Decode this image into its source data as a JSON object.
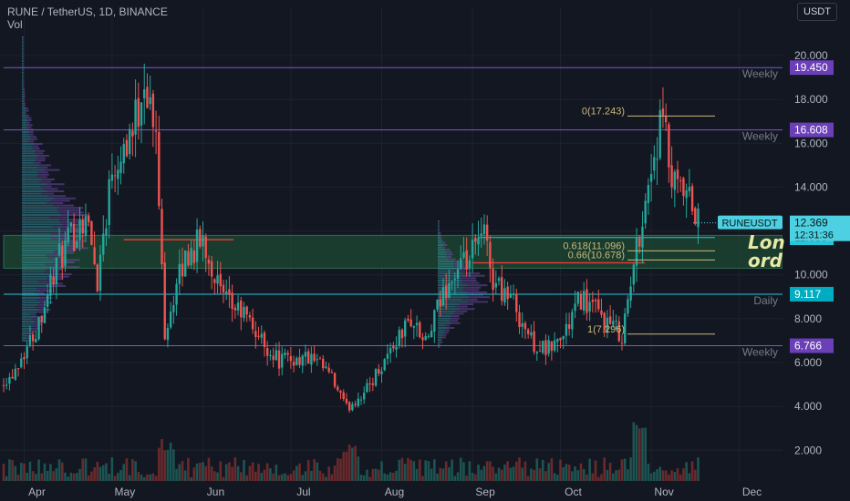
{
  "header": {
    "symbol_line": "RUNE / TetherUS, 1D, BINANCE",
    "volume_label": "Vol",
    "currency": "USDT"
  },
  "annotations": {
    "long_line1": "Lon",
    "long_line2": "ord",
    "symbol_tag": "RUNEUSDT",
    "countdown": "12:31:36"
  },
  "colors": {
    "background": "#131722",
    "up": "#26a69a",
    "down": "#ef5350",
    "weekly_line": "#7e57c2",
    "daily_line": "#26c6da",
    "fib": "#c9b87a",
    "zone": "#1e5a3a",
    "red_line": "#e53935",
    "last_price": "#4dd0e1"
  },
  "chart_data": {
    "type": "candlestick",
    "title": "RUNE / TetherUS, 1D, BINANCE",
    "x_ticks": [
      "Apr",
      "May",
      "Jun",
      "Jul",
      "Aug",
      "Sep",
      "Oct",
      "Nov",
      "Dec"
    ],
    "y_ticks": [
      "2.000",
      "4.000",
      "6.000",
      "8.000",
      "10.000",
      "12.000",
      "14.000",
      "16.000",
      "18.000",
      "20.000"
    ],
    "y_range": [
      0.6,
      22.2
    ],
    "price_levels": [
      {
        "label": "Weekly",
        "value": 19.45,
        "value_text": "19.450",
        "kind": "weekly"
      },
      {
        "label": "Weekly",
        "value": 16.608,
        "value_text": "16.608",
        "kind": "weekly"
      },
      {
        "label": "Daily",
        "value": 9.117,
        "value_text": "9.117",
        "kind": "daily"
      },
      {
        "label": "Weekly",
        "value": 6.766,
        "value_text": "6.766",
        "kind": "weekly"
      }
    ],
    "zone": [
      10.3,
      11.8
    ],
    "zone_label_value": "11.688",
    "last_price": {
      "value": 12.369,
      "value_text": "12.369",
      "countdown": "12:31:36"
    },
    "fib_levels": [
      {
        "label": "0(17.243)",
        "value": 17.243
      },
      {
        "label": "0.618(11.096)",
        "value": 11.096
      },
      {
        "label": "0.66(10.678)",
        "value": 10.678
      },
      {
        "label": "1(7.296)",
        "value": 7.296
      }
    ],
    "candles_path": [
      [
        "2021-03-27",
        5.3
      ],
      [
        "2021-04-05",
        7.5
      ],
      [
        "2021-04-12",
        10.5
      ],
      [
        "2021-04-22",
        12.8
      ],
      [
        "2021-04-26",
        9.8
      ],
      [
        "2021-05-01",
        15.0
      ],
      [
        "2021-05-09",
        17.0
      ],
      [
        "2021-05-12",
        19.2
      ],
      [
        "2021-05-16",
        16.0
      ],
      [
        "2021-05-19",
        7.5
      ],
      [
        "2021-05-26",
        10.8
      ],
      [
        "2021-06-01",
        11.6
      ],
      [
        "2021-06-08",
        8.8
      ],
      [
        "2021-06-15",
        8.2
      ],
      [
        "2021-06-22",
        6.8
      ],
      [
        "2021-06-27",
        6.1
      ],
      [
        "2021-07-07",
        6.2
      ],
      [
        "2021-07-14",
        5.5
      ],
      [
        "2021-07-20",
        3.9
      ],
      [
        "2021-07-27",
        4.8
      ],
      [
        "2021-08-04",
        6.6
      ],
      [
        "2021-08-11",
        8.0
      ],
      [
        "2021-08-16",
        6.8
      ],
      [
        "2021-08-23",
        9.5
      ],
      [
        "2021-08-30",
        10.5
      ],
      [
        "2021-09-05",
        11.8
      ],
      [
        "2021-09-08",
        9.8
      ],
      [
        "2021-09-14",
        9.0
      ],
      [
        "2021-09-21",
        7.0
      ],
      [
        "2021-09-26",
        6.5
      ],
      [
        "2021-10-02",
        7.2
      ],
      [
        "2021-10-08",
        9.0
      ],
      [
        "2021-10-16",
        7.9
      ],
      [
        "2021-10-22",
        7.3
      ],
      [
        "2021-10-25",
        9.5
      ],
      [
        "2021-10-28",
        12.0
      ],
      [
        "2021-11-02",
        15.5
      ],
      [
        "2021-11-05",
        17.0
      ],
      [
        "2021-11-08",
        14.0
      ],
      [
        "2021-11-14",
        13.3
      ],
      [
        "2021-11-17",
        12.4
      ]
    ],
    "volume_note": "volume histogram at bottom, spike around Nov"
  }
}
